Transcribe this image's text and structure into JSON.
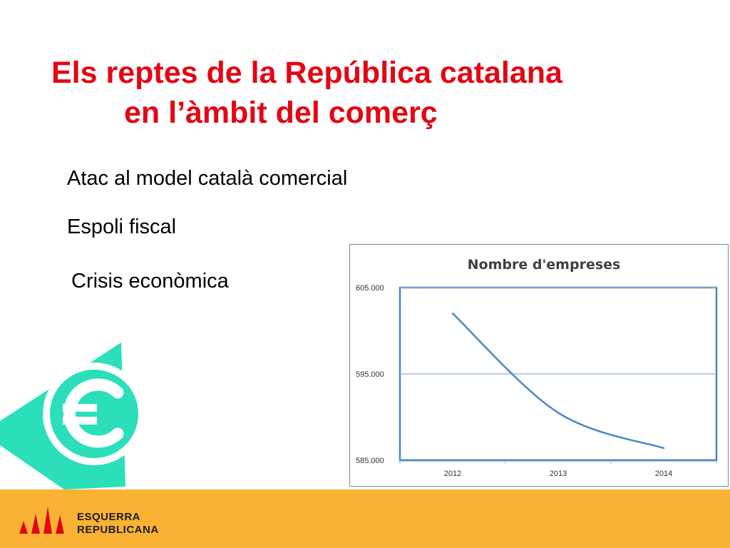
{
  "title": {
    "line1": "Els reptes de la República catalana",
    "line2": "en l’àmbit del comerç"
  },
  "bullets": [
    "Atac al model català comercial",
    "Espoli fiscal",
    "Crisis econòmica"
  ],
  "icons": {
    "euro": "euro-icon",
    "logo": "esquerra-logo-icon"
  },
  "colors": {
    "title": "#e30613",
    "accent": "#2bdfbb",
    "footer": "#f9b233",
    "line": "#4a86c8",
    "logo": "#e30613"
  },
  "logo": {
    "line1": "ESQUERRA",
    "line2": "REPUBLICANA"
  },
  "chart_data": {
    "type": "line",
    "title": "Nombre d'empreses",
    "categories": [
      "2012",
      "2013",
      "2014"
    ],
    "series": [
      {
        "values": [
          602000,
          590500,
          586400
        ]
      }
    ],
    "yticks": [
      "605.000",
      "595.000",
      "585.000"
    ],
    "ylim": [
      585000,
      605000
    ],
    "grid": true,
    "smooth": true
  }
}
